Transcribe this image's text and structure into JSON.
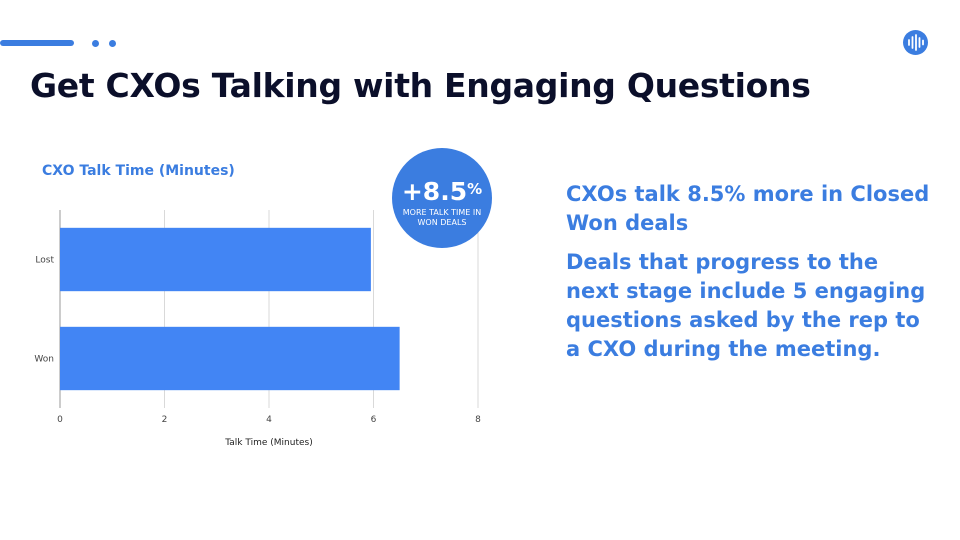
{
  "slide": {
    "title": "Get CXOs Talking with Engaging Questions"
  },
  "badge": {
    "value": "+8.5",
    "unit": "%",
    "caption": "MORE TALK TIME IN WON DEALS"
  },
  "insights": [
    "CXOs talk 8.5% more in Closed Won deals",
    "Deals that progress to the next stage include 5 engaging questions asked by the rep to a CXO during the meeting."
  ],
  "colors": {
    "accent": "#3b7de0",
    "title": "#0b0f2a",
    "bar": "#4285f4",
    "grid": "#d9d9d9",
    "axis_text": "#444444"
  },
  "icons": {
    "logo": "sound-wave-icon"
  },
  "chart_data": {
    "type": "bar",
    "orientation": "horizontal",
    "title": "CXO Talk Time (Minutes)",
    "categories": [
      "Lost",
      "Won"
    ],
    "values": [
      5.95,
      6.5
    ],
    "xlabel": "Talk Time (Minutes)",
    "ylabel": "",
    "xlim": [
      0,
      8
    ],
    "xticks": [
      0,
      2,
      4,
      6,
      8
    ],
    "grid": true,
    "legend": "none"
  }
}
